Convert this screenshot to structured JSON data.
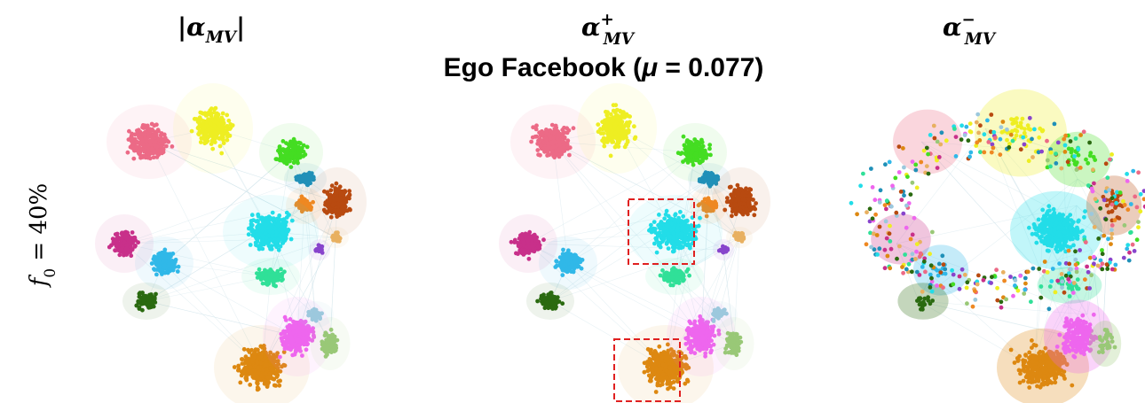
{
  "header": {
    "title": [
      {
        "text": "Ego Facebook ("
      },
      {
        "text": "μ",
        "italic": true
      },
      {
        "text": " = 0.077)"
      }
    ]
  },
  "row_label": [
    {
      "text": "f",
      "italic": true
    },
    {
      "text": "0",
      "sub": true
    },
    {
      "text": " = 40%"
    }
  ],
  "panels": [
    {
      "title": [
        {
          "text": "|α"
        },
        {
          "text": "MV",
          "sub": true
        },
        {
          "text": "|"
        }
      ]
    },
    {
      "title": [
        {
          "text": "α"
        },
        {
          "text": "+",
          "sup": true
        },
        {
          "text": "MV",
          "sub": true
        }
      ]
    },
    {
      "title": [
        {
          "text": "α"
        },
        {
          "text": "−",
          "sup": true
        },
        {
          "text": "MV",
          "sub": true
        }
      ]
    }
  ]
}
